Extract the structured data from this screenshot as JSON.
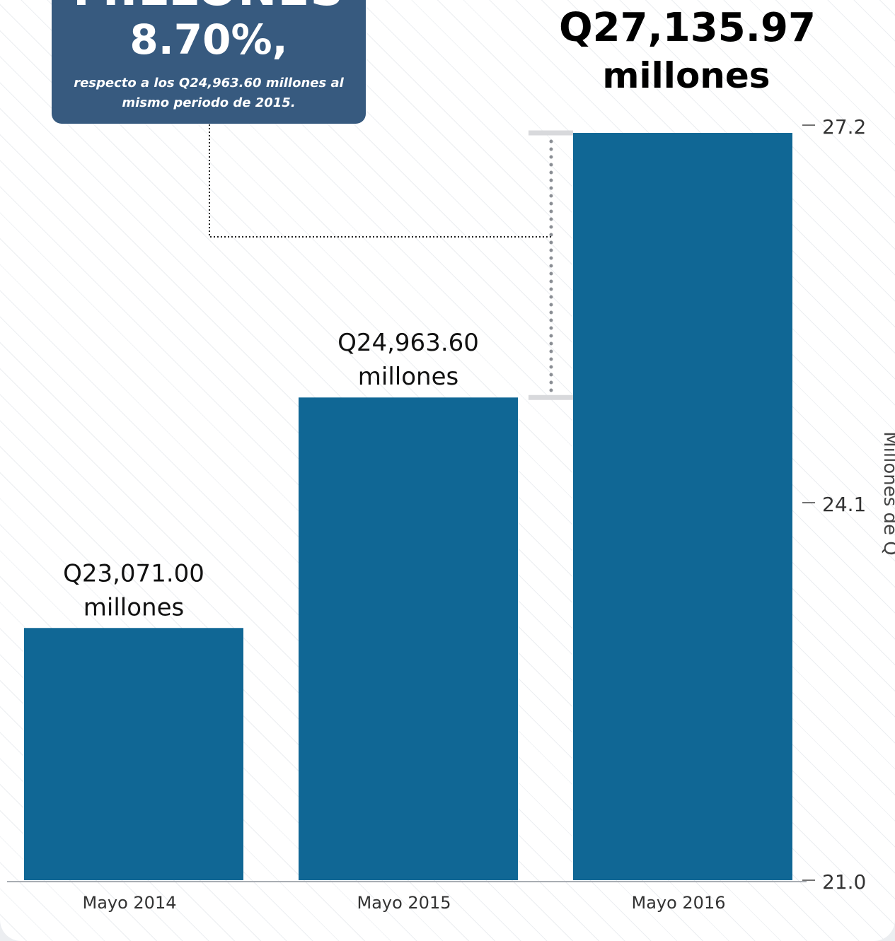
{
  "callout": {
    "heading": "MILLONES",
    "percent": "8.70%,",
    "note": "respecto a los Q24,963.60 millones al mismo periodo de 2015."
  },
  "headline": {
    "value": "Q27,135.97",
    "unit": "millones"
  },
  "colors": {
    "bar": "#106795",
    "callout": "#375a7f",
    "axis": "#a9adb3"
  },
  "chart_data": {
    "type": "bar",
    "categories": [
      "Mayo 2014",
      "Mayo 2015",
      "Mayo 2016"
    ],
    "values": [
      23071.0,
      24963.6,
      27135.97
    ],
    "data_labels": [
      [
        "Q23,071.00",
        "millones"
      ],
      [
        "Q24,963.60",
        "millones"
      ],
      []
    ],
    "ylabel": "Millones de Q",
    "yticks": [
      {
        "value": 21.0,
        "label": "21.0"
      },
      {
        "value": 24.1,
        "label": "24.1"
      },
      {
        "value": 27.2,
        "label": "27.2"
      }
    ],
    "ylim_millions": [
      21000,
      27200
    ],
    "y_axis_position": "right",
    "grid": false,
    "legend": false
  }
}
